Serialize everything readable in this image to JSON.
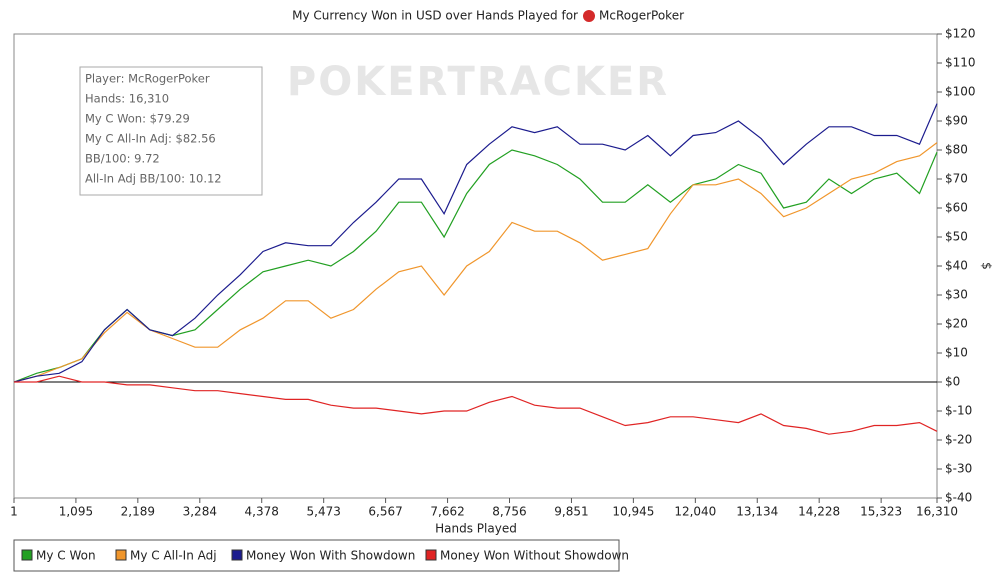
{
  "chart_data": {
    "type": "line",
    "title": "My Currency Won in USD over Hands Played for",
    "title_player": "McRogerPoker",
    "watermark": "POKERTRACKER",
    "x_label": "Hands Played",
    "y_label": "$",
    "x": [
      1,
      400,
      800,
      1200,
      1600,
      2000,
      2400,
      2800,
      3200,
      3600,
      4000,
      4400,
      4800,
      5200,
      5600,
      6000,
      6400,
      6800,
      7200,
      7600,
      8000,
      8400,
      8800,
      9200,
      9600,
      10000,
      10400,
      10800,
      11200,
      11600,
      12000,
      12400,
      12800,
      13200,
      13600,
      14000,
      14400,
      14800,
      15200,
      15600,
      16000,
      16310
    ],
    "series": [
      {
        "name": "My C Won",
        "color": "#22a022",
        "values": [
          0,
          3,
          5,
          8,
          18,
          25,
          18,
          16,
          18,
          25,
          32,
          38,
          40,
          42,
          40,
          45,
          52,
          62,
          62,
          50,
          65,
          75,
          80,
          78,
          75,
          70,
          62,
          62,
          68,
          62,
          68,
          70,
          75,
          72,
          60,
          62,
          70,
          65,
          70,
          72,
          65,
          79.29
        ]
      },
      {
        "name": "My C All-In Adj",
        "color": "#f0962c",
        "values": [
          0,
          2,
          5,
          8,
          17,
          24,
          18,
          15,
          12,
          12,
          18,
          22,
          28,
          28,
          22,
          25,
          32,
          38,
          40,
          30,
          40,
          45,
          55,
          52,
          52,
          48,
          42,
          44,
          46,
          58,
          68,
          68,
          70,
          65,
          57,
          60,
          65,
          70,
          72,
          76,
          78,
          82.56
        ]
      },
      {
        "name": "Money Won With Showdown",
        "color": "#1c1c8e",
        "values": [
          0,
          2,
          3,
          7,
          18,
          25,
          18,
          16,
          22,
          30,
          37,
          45,
          48,
          47,
          47,
          55,
          62,
          70,
          70,
          58,
          75,
          82,
          88,
          86,
          88,
          82,
          82,
          80,
          85,
          78,
          85,
          86,
          90,
          84,
          75,
          82,
          88,
          88,
          85,
          85,
          82,
          96
        ]
      },
      {
        "name": "Money Won Without Showdown",
        "color": "#e02424",
        "values": [
          0,
          0,
          2,
          0,
          0,
          -1,
          -1,
          -2,
          -3,
          -3,
          -4,
          -5,
          -6,
          -6,
          -8,
          -9,
          -9,
          -10,
          -11,
          -10,
          -10,
          -7,
          -5,
          -8,
          -9,
          -9,
          -12,
          -15,
          -14,
          -12,
          -12,
          -13,
          -14,
          -11,
          -15,
          -16,
          -18,
          -17,
          -15,
          -15,
          -14,
          -17
        ]
      }
    ],
    "xlim": [
      1,
      16310
    ],
    "xticks": [
      1,
      {
        "value": 1095,
        "label": "1,095"
      },
      {
        "value": 2189,
        "label": "2,189"
      },
      {
        "value": 3284,
        "label": "3,284"
      },
      {
        "value": 4378,
        "label": "4,378"
      },
      {
        "value": 5473,
        "label": "5,473"
      },
      {
        "value": 6567,
        "label": "6,567"
      },
      {
        "value": 7662,
        "label": "7,662"
      },
      {
        "value": 8756,
        "label": "8,756"
      },
      {
        "value": 9851,
        "label": "9,851"
      },
      {
        "value": 10945,
        "label": "10,945"
      },
      {
        "value": 12040,
        "label": "12,040"
      },
      {
        "value": 13134,
        "label": "13,134"
      },
      {
        "value": 14228,
        "label": "14,228"
      },
      {
        "value": 15323,
        "label": "15,323"
      },
      {
        "value": 16310,
        "label": "16,310"
      }
    ],
    "ylim": [
      -40,
      120
    ],
    "yticks": [
      {
        "value": 120,
        "label": "$120"
      },
      {
        "value": 110,
        "label": "$110"
      },
      {
        "value": 100,
        "label": "$100"
      },
      {
        "value": 90,
        "label": "$90"
      },
      {
        "value": 80,
        "label": "$80"
      },
      {
        "value": 70,
        "label": "$70"
      },
      {
        "value": 60,
        "label": "$60"
      },
      {
        "value": 50,
        "label": "$50"
      },
      {
        "value": 40,
        "label": "$40"
      },
      {
        "value": 30,
        "label": "$30"
      },
      {
        "value": 20,
        "label": "$20"
      },
      {
        "value": 10,
        "label": "$10"
      },
      {
        "value": 0,
        "label": "$0"
      },
      {
        "value": -10,
        "label": "$-10"
      },
      {
        "value": -20,
        "label": "$-20"
      },
      {
        "value": -30,
        "label": "$-30"
      },
      {
        "value": -40,
        "label": "$-40"
      }
    ],
    "grid": false,
    "legend": "bottom",
    "tooltip": [
      "Player: McRogerPoker",
      "Hands: 16,310",
      "My C Won: $79.29",
      "My C All-In Adj: $82.56",
      "BB/100: 9.72",
      "All-In Adj BB/100: 10.12"
    ]
  }
}
